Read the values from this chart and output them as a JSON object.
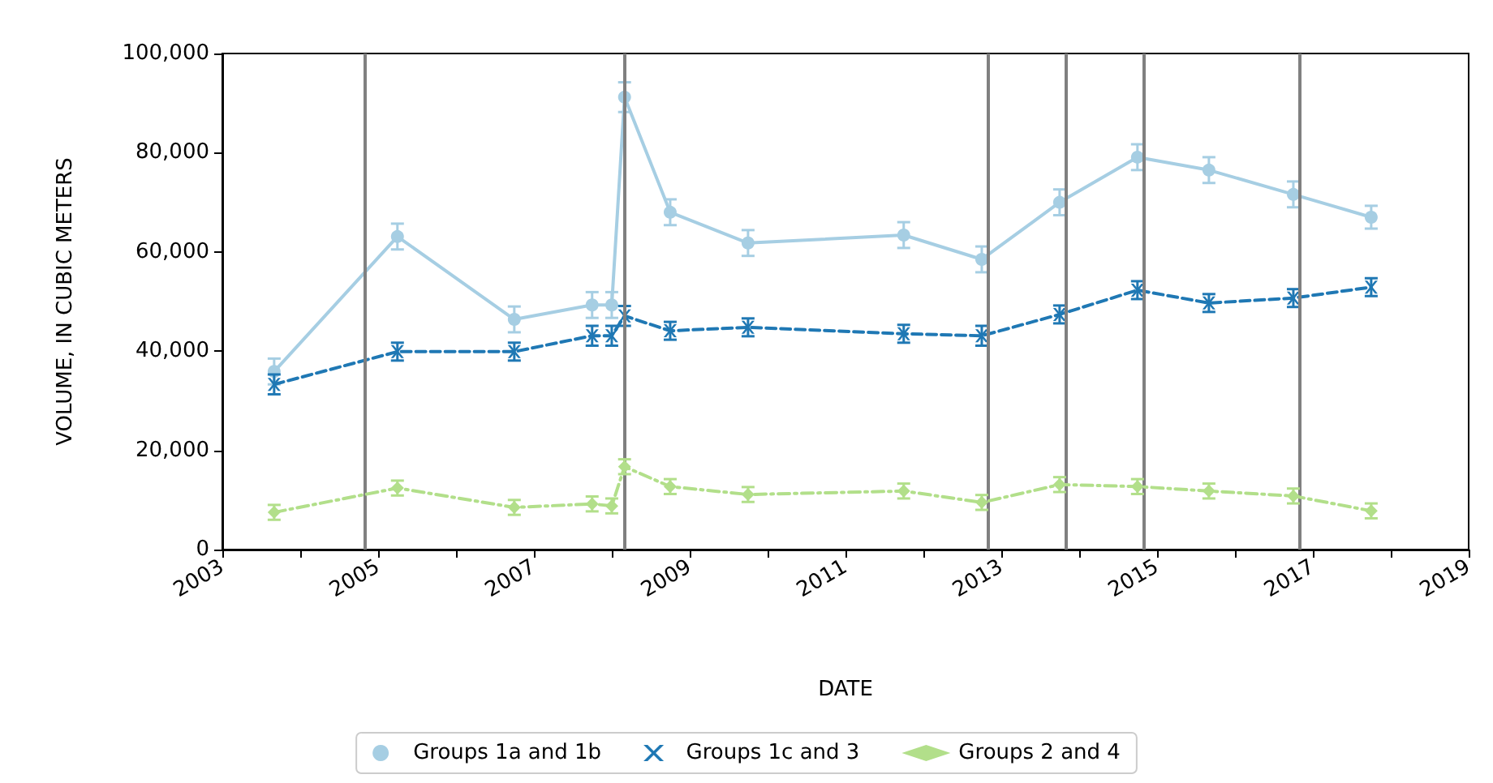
{
  "chart_data": {
    "type": "line",
    "xlabel": "DATE",
    "ylabel": "VOLUME, IN CUBIC METERS",
    "x": [
      "2003-09",
      "2005-04",
      "2006-10",
      "2007-10",
      "2008-01",
      "2008-03",
      "2008-10",
      "2009-10",
      "2011-10",
      "2012-10",
      "2013-10",
      "2014-10",
      "2015-09",
      "2016-10",
      "2017-10"
    ],
    "series": [
      {
        "name": "Groups 1a and 1b",
        "color": "#a6cee3",
        "marker": "circle",
        "line_style": "solid",
        "values": [
          35900,
          63100,
          46400,
          49300,
          49300,
          91200,
          68000,
          61800,
          63400,
          58500,
          70000,
          79100,
          76500,
          71600,
          67000
        ],
        "errors": [
          2600,
          2600,
          2600,
          2600,
          2600,
          3000,
          2600,
          2600,
          2600,
          2600,
          2600,
          2600,
          2600,
          2600,
          2300
        ]
      },
      {
        "name": "Groups 1c and 3",
        "color": "#1f78b4",
        "marker": "cross",
        "line_style": "dashed",
        "values": [
          33300,
          39900,
          39900,
          43100,
          43100,
          47100,
          44100,
          44800,
          43500,
          43100,
          47400,
          52300,
          49700,
          50700,
          52900
        ],
        "errors": [
          2000,
          1800,
          1800,
          2000,
          2000,
          2000,
          1800,
          1800,
          1800,
          2000,
          1800,
          1800,
          1800,
          1800,
          1800
        ]
      },
      {
        "name": "Groups 2 and 4",
        "color": "#b2df8a",
        "marker": "diamond",
        "line_style": "dashdot",
        "values": [
          7500,
          12400,
          8500,
          9200,
          8800,
          16700,
          12700,
          11100,
          11800,
          9500,
          13100,
          12700,
          11800,
          10800,
          7800
        ],
        "errors": [
          1500,
          1500,
          1500,
          1500,
          1500,
          1500,
          1500,
          1500,
          1500,
          1500,
          1500,
          1500,
          1500,
          1500,
          1500
        ]
      }
    ],
    "xlim": [
      "2003",
      "2019"
    ],
    "xticks": [
      {
        "value": "2003",
        "label": "2003"
      },
      {
        "value": "2004",
        "label": null
      },
      {
        "value": "2005",
        "label": "2005"
      },
      {
        "value": "2006",
        "label": null
      },
      {
        "value": "2007",
        "label": "2007"
      },
      {
        "value": "2008",
        "label": null
      },
      {
        "value": "2009",
        "label": "2009"
      },
      {
        "value": "2010",
        "label": null
      },
      {
        "value": "2011",
        "label": "2011"
      },
      {
        "value": "2012",
        "label": null
      },
      {
        "value": "2013",
        "label": "2013"
      },
      {
        "value": "2014",
        "label": null
      },
      {
        "value": "2015",
        "label": "2015"
      },
      {
        "value": "2016",
        "label": null
      },
      {
        "value": "2017",
        "label": "2017"
      },
      {
        "value": "2018",
        "label": null
      },
      {
        "value": "2019",
        "label": "2019"
      }
    ],
    "ylim": [
      0,
      100000
    ],
    "yticks": [
      {
        "value": 0,
        "label": "0"
      },
      {
        "value": 20000,
        "label": "20,000"
      },
      {
        "value": 40000,
        "label": "40,000"
      },
      {
        "value": 60000,
        "label": "60,000"
      },
      {
        "value": 80000,
        "label": "80,000"
      },
      {
        "value": 100000,
        "label": "100,000"
      }
    ],
    "ref_lines": [
      {
        "axis": "x",
        "value": "2004-11",
        "color": "#808080"
      },
      {
        "axis": "x",
        "value": "2008-03",
        "color": "#808080"
      },
      {
        "axis": "x",
        "value": "2012-11",
        "color": "#808080"
      },
      {
        "axis": "x",
        "value": "2013-11",
        "color": "#808080"
      },
      {
        "axis": "x",
        "value": "2014-11",
        "color": "#808080"
      },
      {
        "axis": "x",
        "value": "2016-11",
        "color": "#808080"
      }
    ],
    "grid": false,
    "legend": "bottom"
  }
}
